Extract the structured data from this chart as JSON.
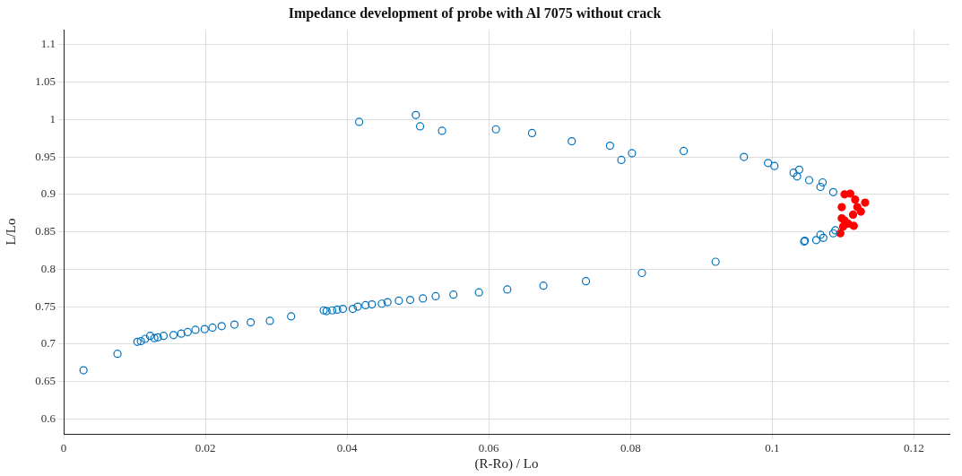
{
  "chart_data": {
    "type": "scatter",
    "title": "Impedance development of probe with Al 7075 without crack",
    "xlabel": "(R-Ro) / Lo",
    "ylabel": "L/Lo",
    "xlim": [
      0,
      0.125
    ],
    "xticks": [
      0,
      0.02,
      0.04,
      0.06,
      0.08,
      0.1,
      0.12
    ],
    "ylim": [
      0.58,
      1.12
    ],
    "yticks": [
      0.6,
      0.65,
      0.7,
      0.75,
      0.8,
      0.85,
      0.9,
      0.95,
      1,
      1.05,
      1.1
    ],
    "grid": true,
    "legend": false,
    "marker": "circle",
    "series": [
      {
        "color": "#0072bd",
        "x": [
          0.0028,
          0.0076,
          0.0104,
          0.0109,
          0.0115,
          0.0122,
          0.0128,
          0.0133,
          0.0141,
          0.0155,
          0.0166,
          0.0175,
          0.0186,
          0.0199,
          0.021,
          0.0223,
          0.0241,
          0.0264,
          0.0291,
          0.0321,
          0.0367,
          0.0371,
          0.0379,
          0.0386,
          0.0394,
          0.0408,
          0.0415,
          0.0426,
          0.0435,
          0.0449,
          0.0457,
          0.0473,
          0.0489,
          0.0507,
          0.0525,
          0.055,
          0.0586,
          0.0626,
          0.0677,
          0.0737,
          0.0816,
          0.092,
          0.1045,
          0.1046,
          0.1062,
          0.1068,
          0.1072,
          0.1086,
          0.1089,
          0.1086,
          0.1068,
          0.1071,
          0.1052,
          0.1035,
          0.1038,
          0.103,
          0.1003,
          0.0994,
          0.096,
          0.0875,
          0.0802,
          0.0787,
          0.0771,
          0.0717,
          0.0661,
          0.061,
          0.0534,
          0.0503,
          0.0497,
          0.0417
        ],
        "values": [
          0.665,
          0.687,
          0.703,
          0.704,
          0.707,
          0.711,
          0.708,
          0.709,
          0.711,
          0.712,
          0.714,
          0.716,
          0.719,
          0.72,
          0.722,
          0.724,
          0.726,
          0.729,
          0.731,
          0.737,
          0.745,
          0.744,
          0.745,
          0.746,
          0.747,
          0.747,
          0.75,
          0.752,
          0.753,
          0.754,
          0.756,
          0.758,
          0.759,
          0.761,
          0.764,
          0.766,
          0.769,
          0.773,
          0.778,
          0.784,
          0.795,
          0.81,
          0.837,
          0.838,
          0.839,
          0.846,
          0.842,
          0.848,
          0.852,
          0.903,
          0.91,
          0.916,
          0.919,
          0.924,
          0.933,
          0.929,
          0.938,
          0.942,
          0.95,
          0.958,
          0.955,
          0.946,
          0.965,
          0.971,
          0.982,
          0.987,
          0.985,
          0.991,
          1.006,
          0.997
        ]
      },
      {
        "color": "#ff0000",
        "x": [
          0.1102,
          0.111,
          0.1117,
          0.1131,
          0.1098,
          0.112,
          0.1125,
          0.1114,
          0.1098,
          0.1102,
          0.1107,
          0.1115,
          0.11,
          0.1098,
          0.1096
        ],
        "values": [
          0.9,
          0.901,
          0.893,
          0.889,
          0.883,
          0.883,
          0.877,
          0.873,
          0.868,
          0.865,
          0.861,
          0.858,
          0.857,
          null,
          0.848
        ]
      }
    ]
  }
}
